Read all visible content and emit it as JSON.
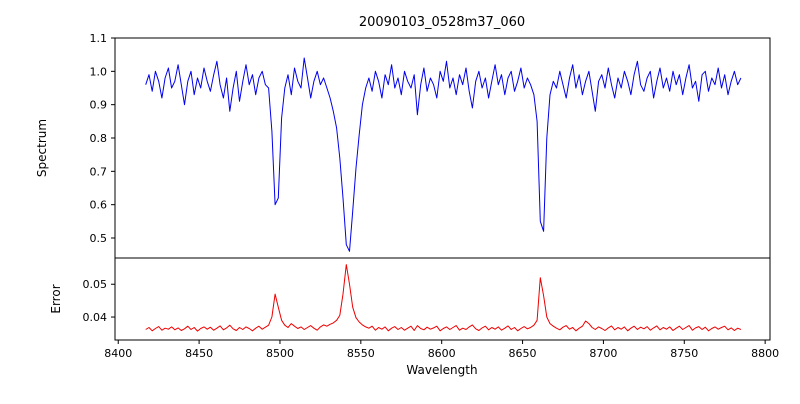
{
  "figure": {
    "background": "#ffffff"
  },
  "chart_data": {
    "type": "line",
    "title": "20090103_0528m37_060",
    "xlabel": "Wavelength",
    "x_start": 8417,
    "x_step": 2,
    "xlim": [
      8398,
      8803
    ],
    "x_ticks": [
      8400,
      8450,
      8500,
      8550,
      8600,
      8650,
      8700,
      8750,
      8800
    ],
    "x_tick_labels": [
      "8400",
      "8450",
      "8500",
      "8550",
      "8600",
      "8650",
      "8700",
      "8750",
      "8800"
    ],
    "panels": [
      {
        "name": "spectrum",
        "ylabel": "Spectrum",
        "ylim": [
          0.44,
          1.1
        ],
        "y_tick_values": [
          1.1,
          1.0,
          0.9,
          0.8,
          0.7,
          0.6,
          0.5
        ],
        "y_tick_labels": [
          "1.1",
          "1.0",
          "0.9",
          "0.8",
          "0.7",
          "0.6",
          "0.5"
        ],
        "color": "#0000ee",
        "line_width": 1,
        "absorption_line_centers": [
          8498,
          8542,
          8662
        ],
        "values": [
          0.96,
          0.99,
          0.94,
          1.0,
          0.97,
          0.92,
          0.98,
          1.01,
          0.95,
          0.97,
          1.02,
          0.96,
          0.9,
          0.97,
          1.0,
          0.93,
          0.98,
          0.95,
          1.01,
          0.97,
          0.94,
          0.99,
          1.03,
          0.96,
          0.92,
          0.98,
          0.88,
          0.95,
          1.0,
          0.91,
          0.97,
          1.02,
          0.96,
          0.99,
          0.93,
          0.98,
          1.0,
          0.96,
          0.95,
          0.82,
          0.6,
          0.62,
          0.86,
          0.95,
          0.99,
          0.93,
          1.01,
          0.97,
          0.95,
          1.04,
          0.98,
          0.92,
          0.97,
          1.0,
          0.96,
          0.98,
          0.95,
          0.92,
          0.88,
          0.83,
          0.74,
          0.62,
          0.48,
          0.46,
          0.58,
          0.71,
          0.81,
          0.9,
          0.95,
          0.98,
          0.94,
          1.0,
          0.97,
          0.92,
          0.99,
          0.96,
          1.02,
          0.95,
          0.98,
          0.93,
          1.0,
          0.97,
          0.95,
          0.99,
          0.87,
          0.96,
          1.01,
          0.94,
          0.98,
          0.96,
          0.92,
          1.0,
          0.97,
          1.03,
          0.95,
          0.98,
          0.93,
          0.99,
          0.96,
          1.01,
          0.94,
          0.89,
          0.97,
          1.0,
          0.95,
          0.98,
          0.92,
          0.97,
          1.02,
          0.96,
          0.99,
          0.93,
          0.98,
          1.0,
          0.94,
          0.97,
          1.01,
          0.95,
          0.98,
          0.96,
          0.93,
          0.85,
          0.55,
          0.52,
          0.8,
          0.93,
          0.97,
          0.95,
          1.0,
          0.96,
          0.92,
          0.98,
          1.02,
          0.95,
          0.99,
          0.93,
          0.97,
          1.0,
          0.94,
          0.88,
          0.97,
          0.99,
          0.95,
          1.01,
          0.96,
          0.92,
          0.98,
          0.95,
          1.0,
          0.97,
          0.93,
          0.99,
          1.03,
          0.96,
          0.94,
          0.98,
          1.0,
          0.92,
          0.97,
          1.01,
          0.95,
          0.98,
          0.94,
          1.0,
          0.96,
          0.99,
          0.93,
          0.98,
          1.02,
          0.95,
          0.97,
          0.91,
          0.99,
          1.0,
          0.94,
          0.98,
          0.96,
          1.01,
          0.95,
          0.99,
          0.93,
          0.97,
          1.0,
          0.96,
          0.98
        ]
      },
      {
        "name": "error",
        "ylabel": "Error",
        "ylim": [
          0.033,
          0.058
        ],
        "y_tick_values": [
          0.05,
          0.04
        ],
        "y_tick_labels": [
          "0.05",
          "0.04"
        ],
        "color": "#ee0000",
        "line_width": 1,
        "values": [
          0.0362,
          0.0368,
          0.0358,
          0.0365,
          0.0371,
          0.036,
          0.0366,
          0.0363,
          0.037,
          0.0361,
          0.0367,
          0.0359,
          0.0364,
          0.0372,
          0.0362,
          0.0368,
          0.0357,
          0.0365,
          0.037,
          0.0363,
          0.0369,
          0.036,
          0.0366,
          0.0373,
          0.0361,
          0.0367,
          0.0375,
          0.0364,
          0.0359,
          0.0368,
          0.0362,
          0.037,
          0.0365,
          0.0358,
          0.0366,
          0.0372,
          0.0363,
          0.0369,
          0.0375,
          0.04,
          0.047,
          0.043,
          0.039,
          0.0375,
          0.0368,
          0.038,
          0.0372,
          0.0365,
          0.037,
          0.0362,
          0.0368,
          0.0374,
          0.0366,
          0.036,
          0.037,
          0.0376,
          0.0372,
          0.0378,
          0.0382,
          0.039,
          0.0405,
          0.047,
          0.056,
          0.05,
          0.043,
          0.0398,
          0.0385,
          0.0376,
          0.037,
          0.0366,
          0.0372,
          0.036,
          0.0368,
          0.0363,
          0.037,
          0.0358,
          0.0366,
          0.0371,
          0.0362,
          0.0368,
          0.036,
          0.0366,
          0.0372,
          0.0359,
          0.0374,
          0.0365,
          0.0361,
          0.0369,
          0.0363,
          0.0367,
          0.0372,
          0.0358,
          0.0365,
          0.037,
          0.0362,
          0.0368,
          0.0374,
          0.036,
          0.0366,
          0.0362,
          0.037,
          0.0376,
          0.0364,
          0.0359,
          0.0367,
          0.0372,
          0.0361,
          0.0368,
          0.0363,
          0.037,
          0.036,
          0.0366,
          0.0373,
          0.0362,
          0.0368,
          0.0358,
          0.0365,
          0.0371,
          0.0364,
          0.0368,
          0.0375,
          0.039,
          0.052,
          0.0465,
          0.04,
          0.038,
          0.0372,
          0.0366,
          0.0361,
          0.0369,
          0.0374,
          0.0363,
          0.0368,
          0.0358,
          0.0366,
          0.0372,
          0.0388,
          0.038,
          0.0368,
          0.0362,
          0.037,
          0.0365,
          0.0359,
          0.0367,
          0.0373,
          0.0361,
          0.0368,
          0.0363,
          0.037,
          0.0358,
          0.0366,
          0.0372,
          0.0362,
          0.0369,
          0.0364,
          0.0371,
          0.036,
          0.0367,
          0.0373,
          0.0361,
          0.0368,
          0.0363,
          0.037,
          0.0359,
          0.0366,
          0.0372,
          0.0362,
          0.0368,
          0.0374,
          0.036,
          0.0367,
          0.0371,
          0.0362,
          0.0369,
          0.0358,
          0.0365,
          0.037,
          0.0363,
          0.0368,
          0.0372,
          0.0361,
          0.0367,
          0.0359,
          0.0366,
          0.0362
        ]
      }
    ]
  }
}
